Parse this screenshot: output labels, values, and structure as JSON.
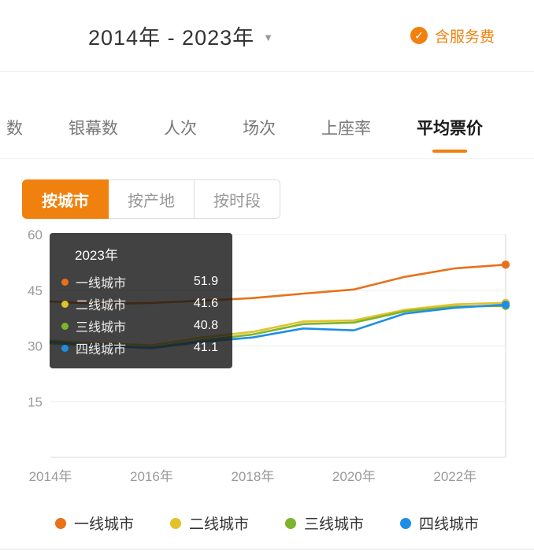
{
  "colors": {
    "accent": "#F0810F",
    "tier1": "#E8711A",
    "tier2": "#E2C22A",
    "tier3": "#7CB52B",
    "tier4": "#1E8EE5"
  },
  "header": {
    "title": "2014年 - 2023年",
    "caret_glyph": "▼",
    "check_glyph": "✓",
    "service_fee_label": "含服务费"
  },
  "tabs": {
    "items": [
      {
        "label": "数",
        "active": false
      },
      {
        "label": "银幕数",
        "active": false
      },
      {
        "label": "人次",
        "active": false
      },
      {
        "label": "场次",
        "active": false
      },
      {
        "label": "上座率",
        "active": false
      },
      {
        "label": "平均票价",
        "active": true
      }
    ]
  },
  "segments": {
    "items": [
      {
        "label": "按城市",
        "active": true
      },
      {
        "label": "按产地",
        "active": false
      },
      {
        "label": "按时段",
        "active": false
      }
    ]
  },
  "tooltip": {
    "title": "2023年",
    "rows": [
      {
        "label": "一线城市",
        "value": "51.9",
        "color": "#E8711A"
      },
      {
        "label": "二线城市",
        "value": "41.6",
        "color": "#E2C22A"
      },
      {
        "label": "三线城市",
        "value": "40.8",
        "color": "#7CB52B"
      },
      {
        "label": "四线城市",
        "value": "41.1",
        "color": "#1E8EE5"
      }
    ]
  },
  "chart_data": {
    "type": "line",
    "title": "平均票价（按城市）",
    "x": [
      2014,
      2015,
      2016,
      2017,
      2018,
      2019,
      2020,
      2021,
      2022,
      2023
    ],
    "x_tick_indices": [
      0,
      2,
      4,
      6,
      8
    ],
    "x_tick_labels": [
      "2014年",
      "2016年",
      "2018年",
      "2020年",
      "2022年"
    ],
    "y_ticks": [
      15,
      30,
      45,
      60
    ],
    "ylim": [
      0,
      60
    ],
    "grid": true,
    "hover_x": 2023,
    "series": [
      {
        "name": "一线城市",
        "color": "#E8711A",
        "values": [
          42.0,
          41.3,
          41.6,
          42.2,
          42.9,
          44.1,
          45.2,
          48.6,
          50.9,
          51.9
        ]
      },
      {
        "name": "二线城市",
        "color": "#E2C22A",
        "values": [
          31.5,
          30.7,
          30.2,
          32.3,
          33.8,
          36.6,
          36.9,
          39.7,
          41.2,
          41.6
        ]
      },
      {
        "name": "三线城市",
        "color": "#7CB52B",
        "values": [
          30.7,
          30.1,
          29.6,
          31.5,
          33.1,
          35.9,
          36.3,
          39.3,
          40.6,
          40.8
        ]
      },
      {
        "name": "四线城市",
        "color": "#1E8EE5",
        "values": [
          31.1,
          30.0,
          29.4,
          31.1,
          32.3,
          34.7,
          34.2,
          38.7,
          40.3,
          41.1
        ]
      }
    ]
  },
  "legend": {
    "items": [
      {
        "label": "一线城市",
        "color": "#E8711A"
      },
      {
        "label": "二线城市",
        "color": "#E2C22A"
      },
      {
        "label": "三线城市",
        "color": "#7CB52B"
      },
      {
        "label": "四线城市",
        "color": "#1E8EE5"
      }
    ]
  }
}
